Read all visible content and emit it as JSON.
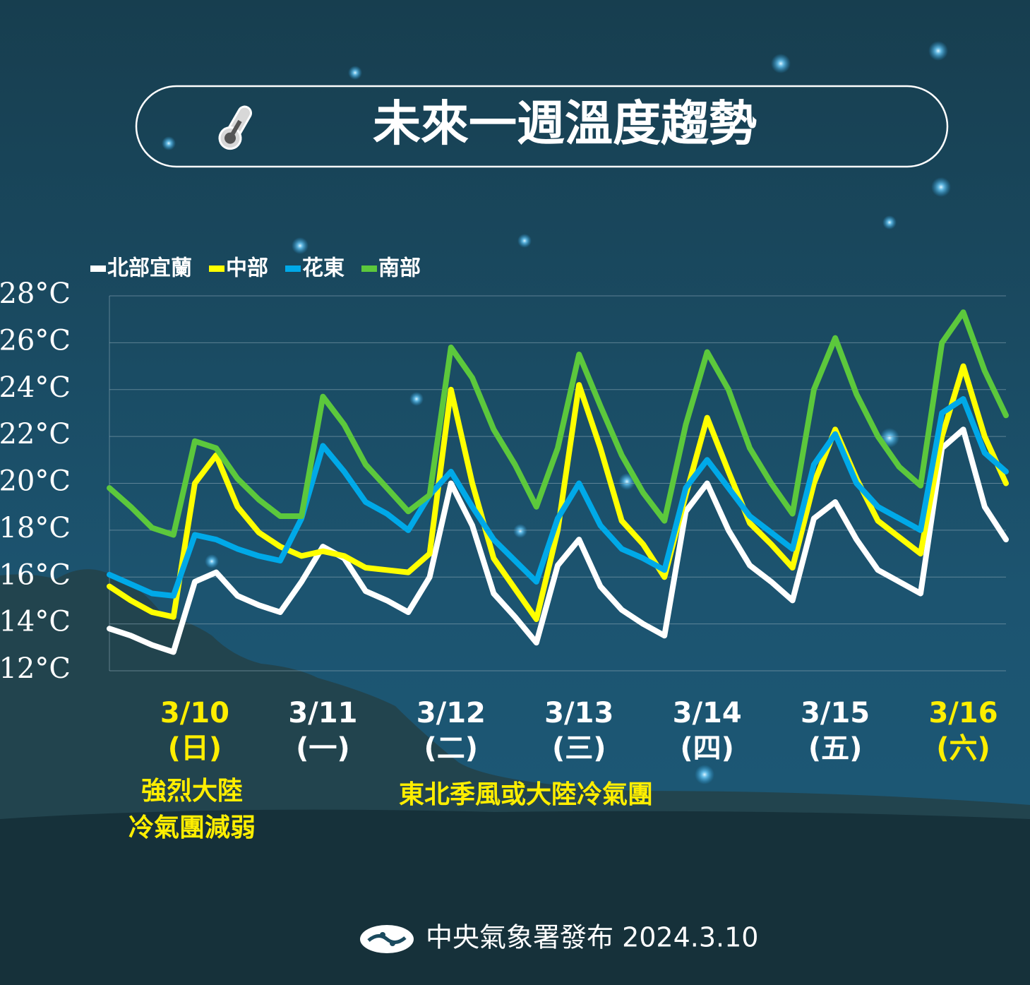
{
  "chart_data": {
    "type": "line",
    "title": "未來一週溫度趨勢",
    "footer": "中央氣象署發布 2024.3.10",
    "ylim": [
      12,
      28
    ],
    "yticks": [
      {
        "value": 12,
        "label": "12°C"
      },
      {
        "value": 14,
        "label": "14°C"
      },
      {
        "value": 16,
        "label": "16°C"
      },
      {
        "value": 18,
        "label": "18°C"
      },
      {
        "value": 20,
        "label": "20°C"
      },
      {
        "value": 22,
        "label": "22°C"
      },
      {
        "value": 24,
        "label": "24°C"
      },
      {
        "value": 26,
        "label": "26°C"
      },
      {
        "value": 28,
        "label": "28°C"
      }
    ],
    "grid": true,
    "legend": "top-left",
    "categories": [
      null,
      null,
      null,
      null,
      "3/10",
      null,
      null,
      null,
      null,
      null,
      "3/11",
      null,
      null,
      null,
      null,
      null,
      "3/12",
      null,
      null,
      null,
      null,
      null,
      "3/13",
      null,
      null,
      null,
      null,
      null,
      "3/14",
      null,
      null,
      null,
      null,
      null,
      "3/15",
      null,
      null,
      null,
      null,
      null,
      "3/16",
      null,
      null
    ],
    "weekdays": [
      null,
      null,
      null,
      null,
      "(日)",
      null,
      null,
      null,
      null,
      null,
      "(一)",
      null,
      null,
      null,
      null,
      null,
      "(二)",
      null,
      null,
      null,
      null,
      null,
      "(三)",
      null,
      null,
      null,
      null,
      null,
      "(四)",
      null,
      null,
      null,
      null,
      null,
      "(五)",
      null,
      null,
      null,
      null,
      null,
      "(六)",
      null,
      null
    ],
    "category_colors": [
      null,
      null,
      null,
      null,
      "#ffee00",
      null,
      null,
      null,
      null,
      null,
      "#ffffff",
      null,
      null,
      null,
      null,
      null,
      "#ffffff",
      null,
      null,
      null,
      null,
      null,
      "#ffffff",
      null,
      null,
      null,
      null,
      null,
      "#ffffff",
      null,
      null,
      null,
      null,
      null,
      "#ffffff",
      null,
      null,
      null,
      null,
      null,
      "#ffee00",
      null,
      null
    ],
    "series": [
      {
        "name": "北部宜蘭",
        "color": "#ffffff",
        "values": [
          13.8,
          13.5,
          13.1,
          12.8,
          15.8,
          16.2,
          15.2,
          14.8,
          14.5,
          15.8,
          17.3,
          16.8,
          15.4,
          15.0,
          14.5,
          16.0,
          20.0,
          18.2,
          15.3,
          14.3,
          13.2,
          16.5,
          17.6,
          15.6,
          14.6,
          14.0,
          13.5,
          18.8,
          20.0,
          18.0,
          16.5,
          15.8,
          15.0,
          18.5,
          19.2,
          17.6,
          16.3,
          15.8,
          15.3,
          21.5,
          22.3,
          19.0,
          17.6
        ]
      },
      {
        "name": "中部",
        "color": "#ffff00",
        "values": [
          15.6,
          15.0,
          14.5,
          14.3,
          20.0,
          21.2,
          19.0,
          17.9,
          17.3,
          16.9,
          17.1,
          16.9,
          16.4,
          16.3,
          16.2,
          17.0,
          24.0,
          20.0,
          16.8,
          15.5,
          14.2,
          18.0,
          24.2,
          21.5,
          18.4,
          17.4,
          16.0,
          19.5,
          22.8,
          20.5,
          18.3,
          17.4,
          16.4,
          20.0,
          22.3,
          20.2,
          18.4,
          17.7,
          17.0,
          22.0,
          25.0,
          22.0,
          20.0
        ]
      },
      {
        "name": "花東",
        "color": "#00a9e8",
        "values": [
          16.1,
          15.7,
          15.3,
          15.2,
          17.8,
          17.6,
          17.2,
          16.9,
          16.7,
          18.5,
          21.6,
          20.5,
          19.2,
          18.7,
          18.0,
          19.5,
          20.5,
          19.0,
          17.6,
          16.7,
          15.8,
          18.5,
          20.0,
          18.2,
          17.2,
          16.8,
          16.3,
          19.8,
          21.0,
          19.8,
          18.6,
          17.9,
          17.2,
          20.8,
          22.1,
          20.0,
          19.0,
          18.5,
          18.0,
          23.0,
          23.6,
          21.3,
          20.5
        ]
      },
      {
        "name": "南部",
        "color": "#5cc83c",
        "values": [
          19.8,
          19.0,
          18.1,
          17.8,
          21.8,
          21.5,
          20.2,
          19.3,
          18.6,
          18.6,
          23.7,
          22.5,
          20.8,
          19.8,
          18.8,
          19.5,
          25.8,
          24.5,
          22.3,
          20.8,
          19.0,
          21.5,
          25.5,
          23.3,
          21.2,
          19.6,
          18.4,
          22.5,
          25.6,
          24.0,
          21.5,
          20.0,
          18.7,
          24.0,
          26.2,
          23.8,
          22.0,
          20.7,
          19.9,
          26.0,
          27.3,
          24.8,
          22.9
        ]
      }
    ],
    "annotations": [
      {
        "lines": [
          "強烈大陸",
          "冷氣團減弱"
        ]
      },
      {
        "lines": [
          "東北季風或大陸冷氣團"
        ]
      }
    ]
  }
}
